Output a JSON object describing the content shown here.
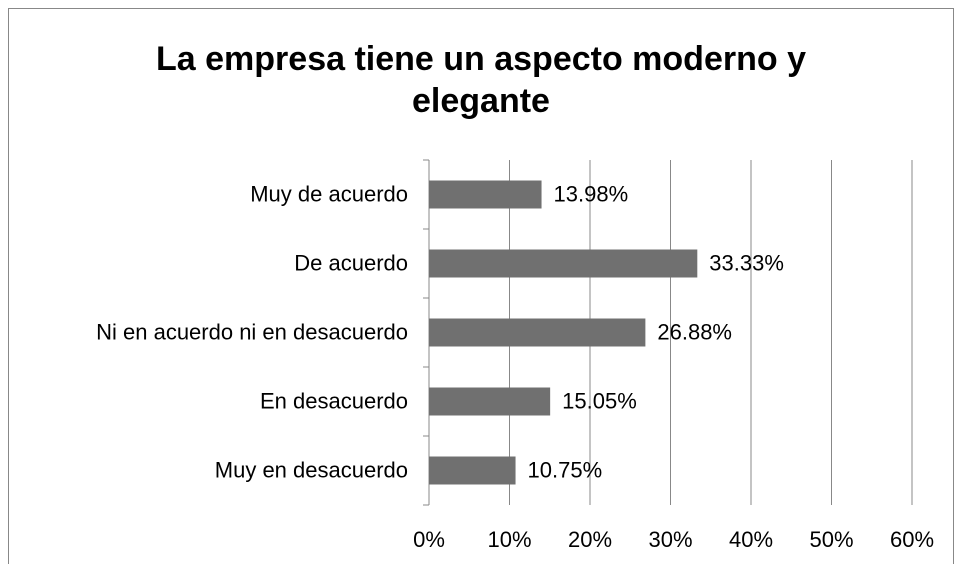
{
  "chart_data": {
    "type": "bar",
    "orientation": "horizontal",
    "title": "La empresa tiene un aspecto moderno y elegante",
    "categories": [
      "Muy de acuerdo",
      "De acuerdo",
      "Ni en acuerdo ni en desacuerdo",
      "En desacuerdo",
      "Muy en desacuerdo"
    ],
    "values": [
      13.98,
      33.33,
      26.88,
      15.05,
      10.75
    ],
    "value_labels": [
      "13.98%",
      "33.33%",
      "26.88%",
      "15.05%",
      "10.75%"
    ],
    "color": "#707070",
    "xlim": [
      0,
      60
    ],
    "xticks": [
      {
        "value": 0,
        "label": "0%"
      },
      {
        "value": 10,
        "label": "10%"
      },
      {
        "value": 20,
        "label": "20%"
      },
      {
        "value": 30,
        "label": "30%"
      },
      {
        "value": 40,
        "label": "40%"
      },
      {
        "value": 50,
        "label": "50%"
      },
      {
        "value": 60,
        "label": "60%"
      }
    ],
    "grid": true
  }
}
